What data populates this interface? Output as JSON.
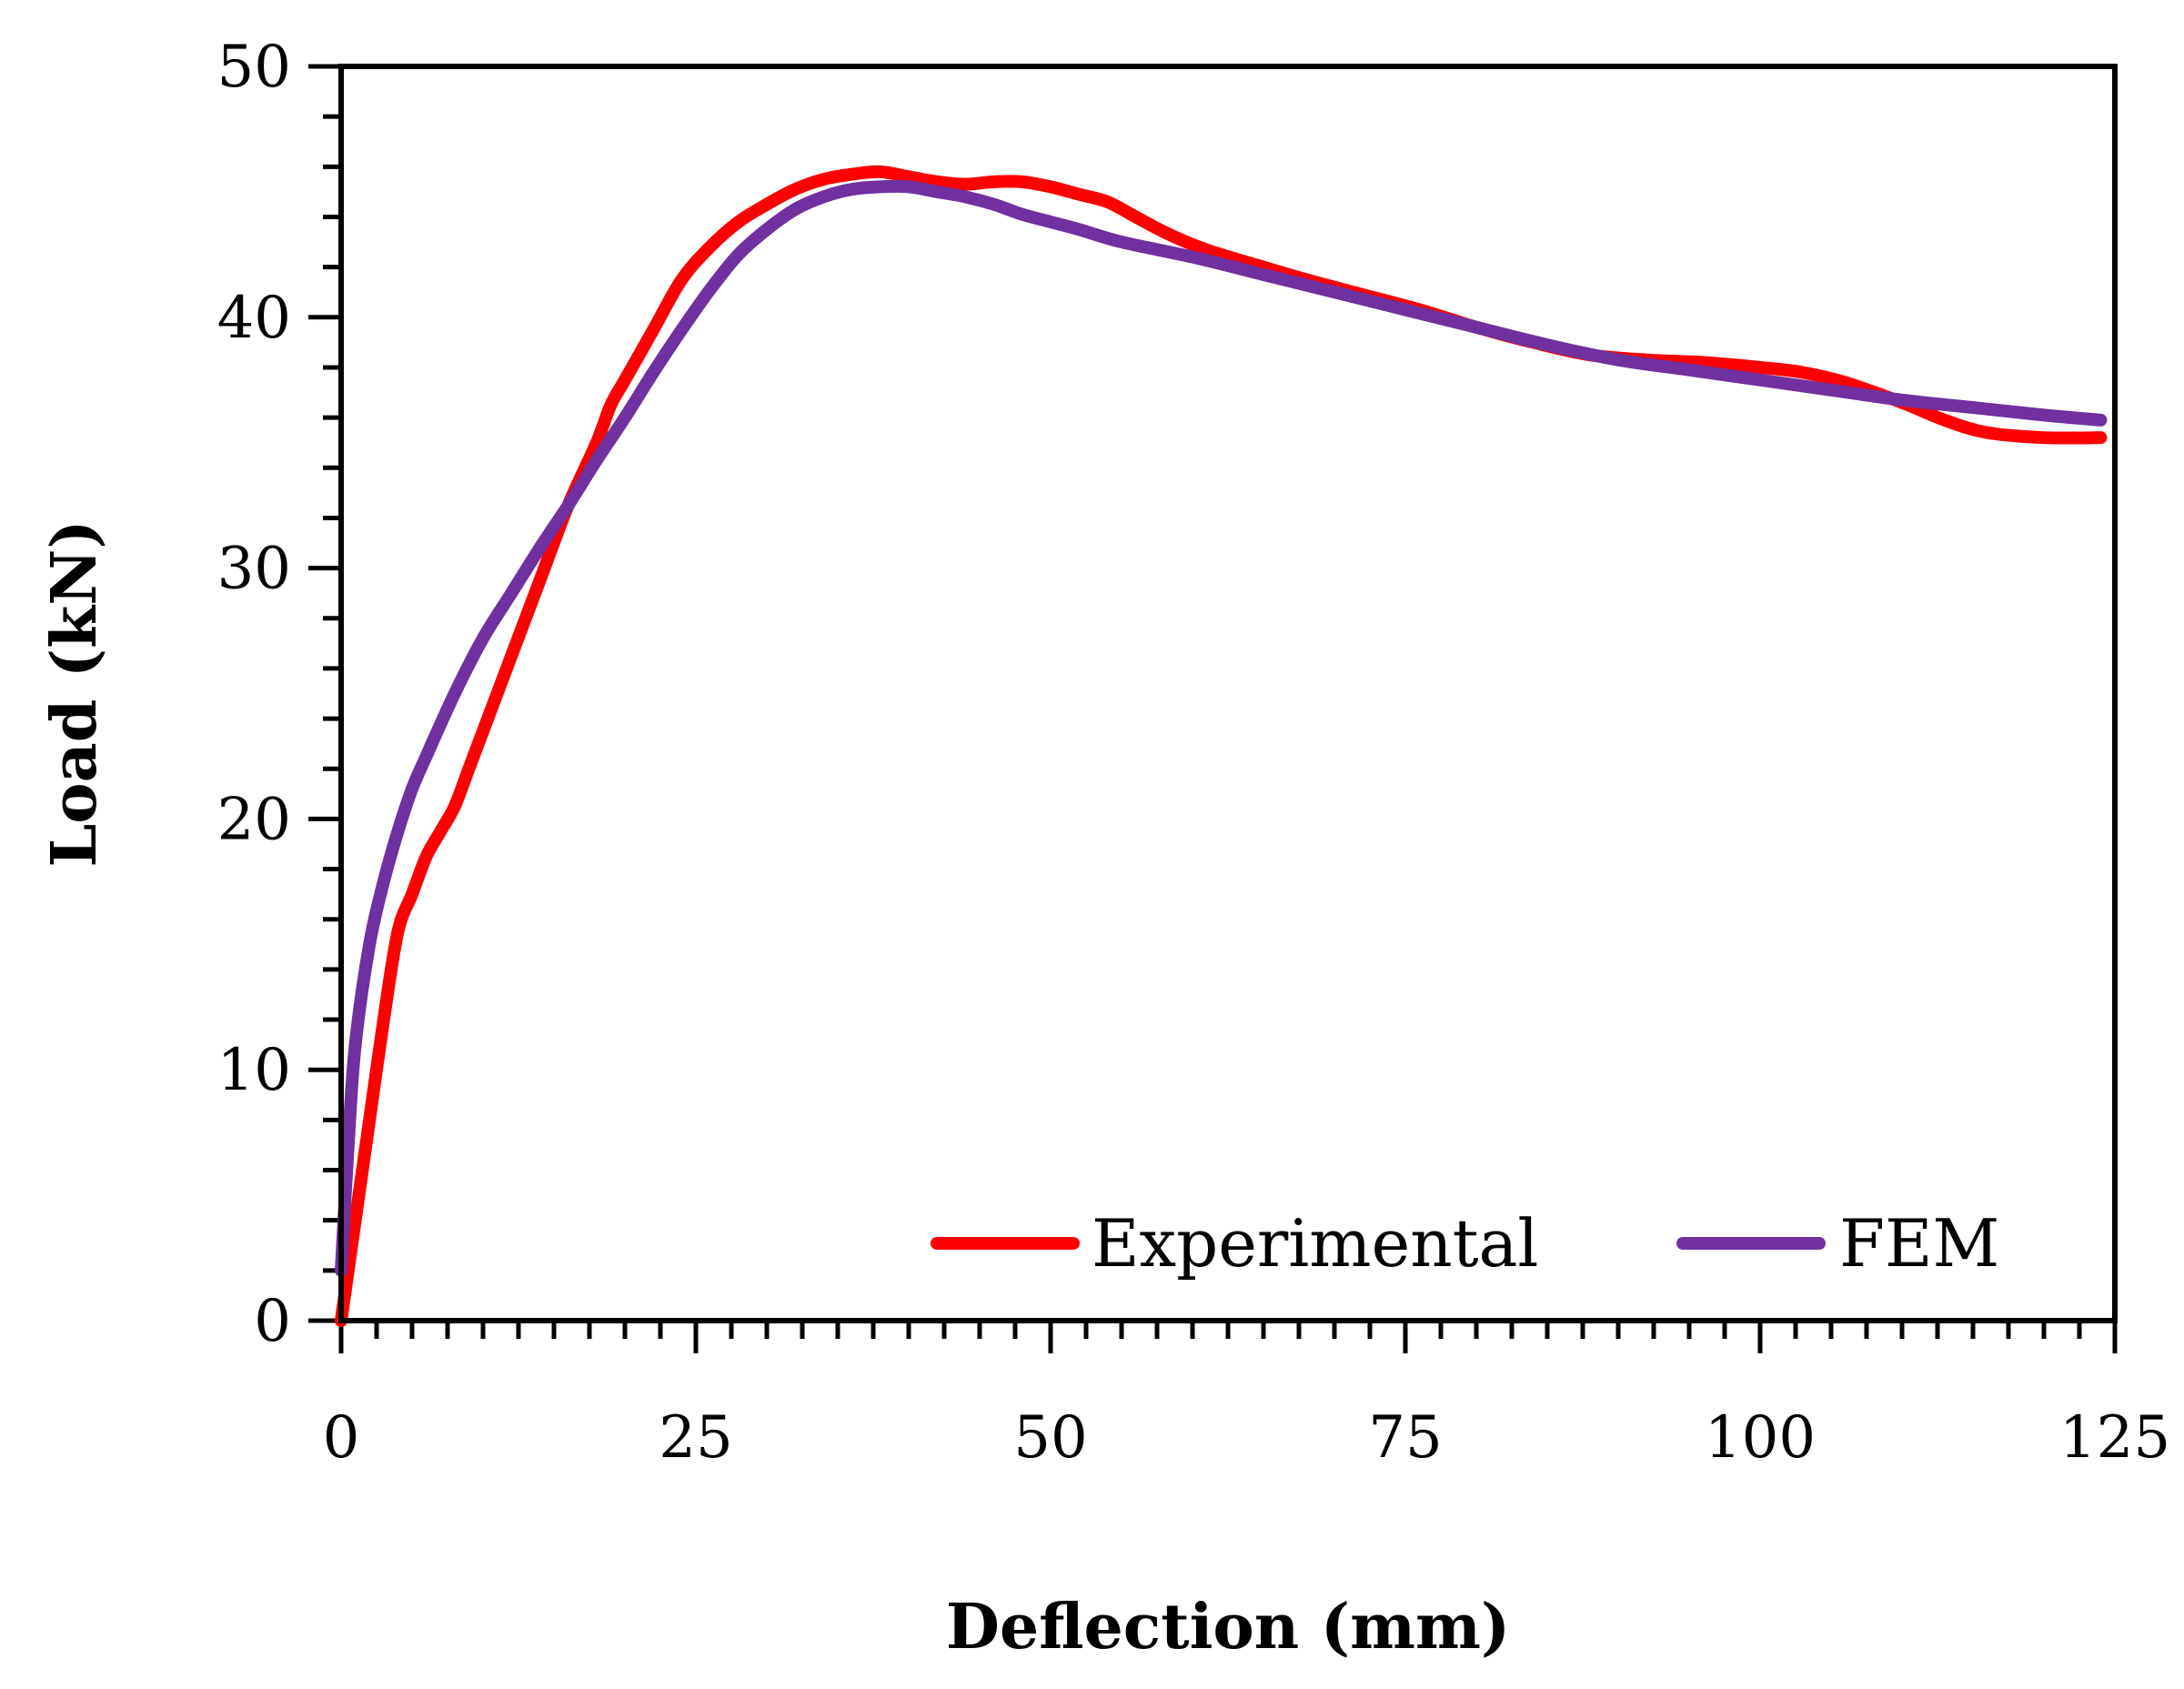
{
  "chart_data": {
    "type": "line",
    "title": "",
    "xlabel": "Deflection (mm)",
    "ylabel": "Load (kN)",
    "xlim": [
      0,
      125
    ],
    "ylim": [
      0,
      50
    ],
    "x_ticks": [
      0,
      25,
      50,
      75,
      100,
      125
    ],
    "y_ticks": [
      0,
      10,
      20,
      30,
      40,
      50
    ],
    "x_tick_labels": [
      "0",
      "25",
      "50",
      "75",
      "100",
      "125"
    ],
    "y_tick_labels": [
      "0",
      "10",
      "20",
      "30",
      "40",
      "50"
    ],
    "x_minor_step": 2.5,
    "y_minor_step": 2,
    "grid": false,
    "legend_position": "bottom-right",
    "series": [
      {
        "name": "Experimental",
        "color": "#ff0000",
        "x": [
          0,
          1,
          2,
          3,
          4,
          5,
          6,
          7,
          8,
          9,
          10,
          11,
          12,
          14,
          16,
          18,
          19,
          20,
          22,
          24,
          26,
          28,
          30,
          32,
          34,
          36,
          38,
          40,
          42,
          44,
          46,
          48,
          50,
          52,
          54,
          56,
          58,
          60,
          62,
          65,
          68,
          72,
          76,
          80,
          84,
          88,
          92,
          96,
          100,
          103,
          106,
          110,
          113,
          116,
          120,
          124
        ],
        "y": [
          0,
          4,
          8,
          12,
          15.5,
          17,
          18.5,
          19.5,
          20.5,
          22,
          23.5,
          25,
          26.5,
          29.5,
          32.5,
          35,
          36.5,
          37.5,
          39.5,
          41.5,
          42.8,
          43.8,
          44.5,
          45.1,
          45.5,
          45.7,
          45.8,
          45.6,
          45.4,
          45.3,
          45.4,
          45.4,
          45.2,
          44.9,
          44.6,
          44.0,
          43.4,
          42.9,
          42.5,
          42.0,
          41.5,
          40.9,
          40.3,
          39.6,
          39.0,
          38.5,
          38.3,
          38.2,
          38.0,
          37.8,
          37.4,
          36.6,
          35.9,
          35.4,
          35.2,
          35.2
        ]
      },
      {
        "name": "FEM",
        "color": "#7030a0",
        "x": [
          0,
          0.5,
          1,
          2,
          3,
          4,
          5,
          6,
          8,
          10,
          12,
          14,
          16,
          18,
          20,
          22,
          24,
          26,
          28,
          30,
          32,
          34,
          36,
          38,
          40,
          42,
          44,
          46,
          48,
          50,
          52,
          55,
          60,
          65,
          70,
          75,
          80,
          85,
          90,
          95,
          100,
          105,
          110,
          115,
          120,
          124
        ],
        "y": [
          2,
          7,
          11,
          15,
          17.5,
          19.5,
          21.2,
          22.5,
          25,
          27.2,
          29,
          30.8,
          32.5,
          34.3,
          36,
          37.8,
          39.5,
          41.1,
          42.5,
          43.5,
          44.3,
          44.8,
          45.1,
          45.2,
          45.2,
          45.0,
          44.8,
          44.5,
          44.1,
          43.8,
          43.5,
          43.0,
          42.4,
          41.7,
          41.0,
          40.3,
          39.6,
          38.9,
          38.3,
          37.9,
          37.5,
          37.1,
          36.7,
          36.4,
          36.1,
          35.9
        ]
      }
    ]
  }
}
